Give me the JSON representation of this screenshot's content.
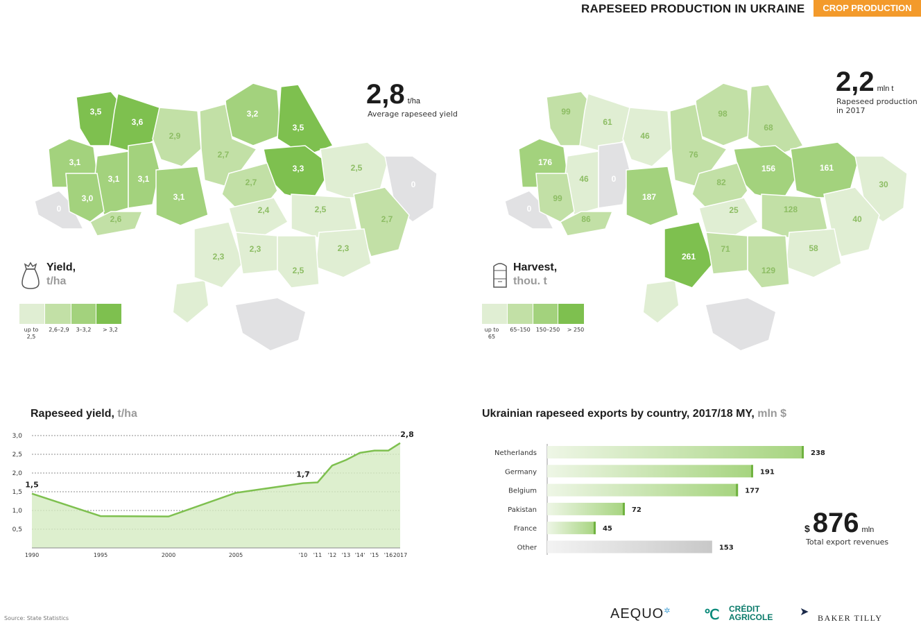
{
  "header": {
    "title": "RAPESEED PRODUCTION IN UKRAINE",
    "badge": "CROP PRODUCTION"
  },
  "colors": {
    "accent": "#f39a2b",
    "level1": "#e0eed3",
    "level2": "#c2e0a6",
    "level3": "#a3d27d",
    "level4": "#7ec04f",
    "na": "#e1e1e3"
  },
  "yield_map": {
    "big_value": "2,8",
    "big_unit": "t/ha",
    "caption": "Average rapeseed yield",
    "legend_title": "Yield,",
    "legend_unit": "t/ha",
    "icon": "bag-icon",
    "legend": [
      "up to 2,5",
      "2,6–2,9",
      "3–3,2",
      "> 3,2"
    ],
    "labels": [
      "3,5",
      "3,6",
      "3,2",
      "3,5",
      "2,9",
      "3,1",
      "2,7",
      "3,3",
      "2,5",
      "0",
      "3,1",
      "3,1",
      "2,7",
      "0",
      "3,0",
      "3,1",
      "2,6",
      "2,4",
      "2,5",
      "2,7",
      "2,3",
      "2,3",
      "2,3",
      "2,5"
    ]
  },
  "harvest_map": {
    "big_value": "2,2",
    "big_unit": "mln t",
    "caption_line1": "Rapeseed production",
    "caption_line2": "in 2017",
    "legend_title": "Harvest,",
    "legend_unit": "thou. t",
    "icon": "silo-icon",
    "legend": [
      "up to 65",
      "65–150",
      "150–250",
      "> 250"
    ],
    "labels": [
      "99",
      "61",
      "98",
      "68",
      "46",
      "176",
      "76",
      "156",
      "161",
      "30",
      "46",
      "0",
      "82",
      "0",
      "99",
      "187",
      "86",
      "25",
      "128",
      "40",
      "261",
      "71",
      "58",
      "129"
    ]
  },
  "yield_chart_title": "Rapeseed yield,",
  "yield_chart_unit": "t/ha",
  "exports_title": "Ukrainian rapeseed exports by country, 2017/18 MY,",
  "exports_unit": "mln $",
  "exports_total": {
    "currency": "$",
    "value": "876",
    "unit": "mln",
    "caption": "Total export revenues"
  },
  "source": "Source: State Statistics",
  "logos": {
    "aequo": "AEQUO",
    "ca1": "CRÉDIT",
    "ca2": "AGRICOLE",
    "bt": "BAKER TILLY"
  },
  "chart_data": [
    {
      "type": "area",
      "x": [
        "1990",
        "1995",
        "2000",
        "2005",
        "2010",
        "2011",
        "2012",
        "2013",
        "2014",
        "2015",
        "2016",
        "2017"
      ],
      "x_tick_labels": [
        "1990",
        "1995",
        "2000",
        "2005",
        "'10",
        "'11",
        "'12",
        "'13",
        "'14'",
        "'15",
        "'16",
        "2017"
      ],
      "values": [
        1.45,
        0.85,
        0.84,
        1.47,
        1.73,
        1.75,
        2.2,
        2.35,
        2.54,
        2.6,
        2.6,
        2.8
      ],
      "data_labels": [
        {
          "index": 0,
          "text": "1,5"
        },
        {
          "index": 4,
          "text": "1,7"
        },
        {
          "index": 11,
          "text": "2,8"
        }
      ],
      "y_ticks": [
        "0,5",
        "1,0",
        "1,5",
        "2,0",
        "2,5",
        "3,0"
      ],
      "ylim": [
        0,
        3.0
      ],
      "grid": true
    },
    {
      "type": "bar",
      "orientation": "horizontal",
      "categories": [
        "Netherlands",
        "Germany",
        "Belgium",
        "Pakistan",
        "France",
        "Other"
      ],
      "values": [
        238,
        191,
        177,
        72,
        45,
        153
      ]
    }
  ]
}
